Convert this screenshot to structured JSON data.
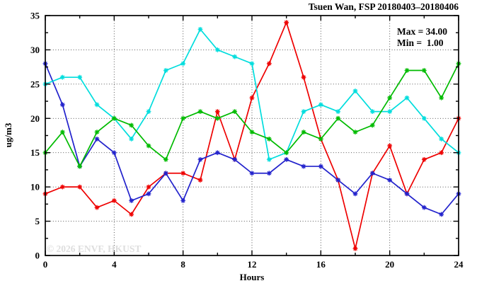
{
  "header": {
    "title": "Tsuen Wan, FSP 20180403–20180406"
  },
  "legend": {
    "max_label": "Max = 34.00",
    "min_label": "Min =  1.00"
  },
  "watermark": "© 2026 ENVF, HKUST",
  "axes": {
    "xlabel": "Hours",
    "ylabel": "ug/m3"
  },
  "chart_data": {
    "type": "line",
    "title": "Tsuen Wan, FSP 20180403–20180406",
    "xlabel": "Hours",
    "ylabel": "ug/m3",
    "xlim": [
      0,
      24
    ],
    "ylim": [
      0,
      35
    ],
    "x_major_ticks": [
      0,
      4,
      8,
      12,
      16,
      20,
      24
    ],
    "x_minor_step": 2,
    "y_major_ticks": [
      0,
      5,
      10,
      15,
      20,
      25,
      30,
      35
    ],
    "y_minor_step": 2.5,
    "grid": true,
    "legend_position": "top-right-inside",
    "annotations": [
      "Max = 34.00",
      "Min =  1.00"
    ],
    "x": [
      0,
      1,
      2,
      3,
      4,
      5,
      6,
      7,
      8,
      9,
      10,
      11,
      12,
      13,
      14,
      15,
      16,
      17,
      18,
      19,
      20,
      21,
      22,
      23,
      24
    ],
    "series": [
      {
        "name": "red",
        "color": "#ee0000",
        "values": [
          9,
          10,
          10,
          7,
          8,
          6,
          10,
          12,
          12,
          11,
          21,
          14,
          23,
          28,
          34,
          26,
          17,
          11,
          1,
          12,
          16,
          9,
          14,
          15,
          20
        ]
      },
      {
        "name": "blue",
        "color": "#2222cc",
        "values": [
          28,
          22,
          13,
          17,
          15,
          8,
          9,
          12,
          8,
          14,
          15,
          14,
          12,
          12,
          14,
          13,
          13,
          11,
          9,
          12,
          11,
          9,
          7,
          6,
          9
        ]
      },
      {
        "name": "cyan",
        "color": "#00dddd",
        "values": [
          25,
          26,
          26,
          22,
          20,
          17,
          21,
          27,
          28,
          33,
          30,
          29,
          28,
          14,
          15,
          21,
          22,
          21,
          24,
          21,
          21,
          23,
          20,
          17,
          15
        ]
      },
      {
        "name": "green",
        "color": "#00bb00",
        "values": [
          15,
          18,
          13,
          18,
          20,
          19,
          16,
          14,
          20,
          21,
          20,
          21,
          18,
          17,
          15,
          18,
          17,
          20,
          18,
          19,
          23,
          27,
          27,
          23,
          28
        ]
      }
    ],
    "stats": {
      "max": 34.0,
      "min": 1.0
    }
  }
}
